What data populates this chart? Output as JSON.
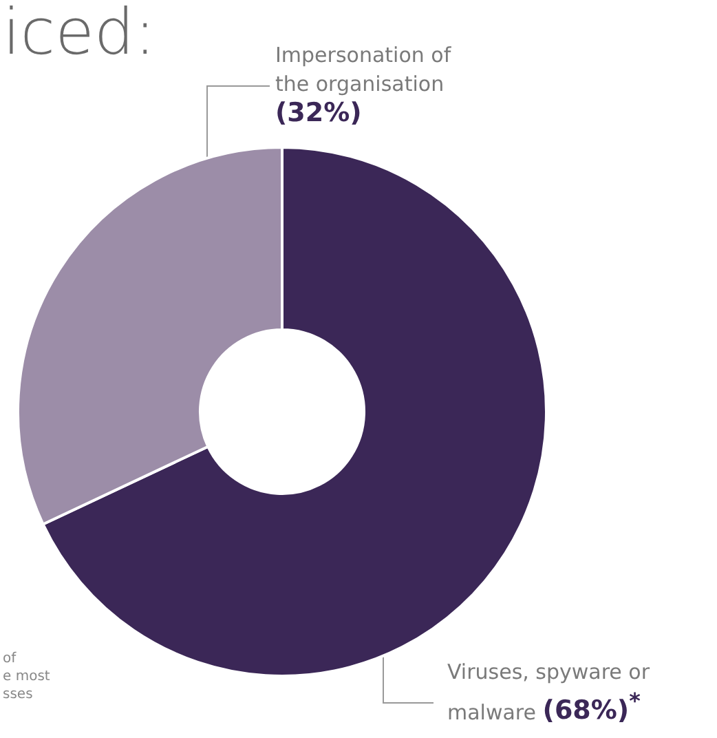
{
  "chart_data": {
    "type": "donut",
    "title": "iced:",
    "categories": [
      "Viruses, spyware or malware",
      "Impersonation of the organisation"
    ],
    "values": [
      68,
      32
    ],
    "colors": [
      "#3b2757",
      "#9c8da8"
    ],
    "value_labels": [
      "(68%)$^{*}$",
      "(32%)"
    ],
    "annotations": [
      "of\ne most\nsses"
    ],
    "legend": false
  }
}
